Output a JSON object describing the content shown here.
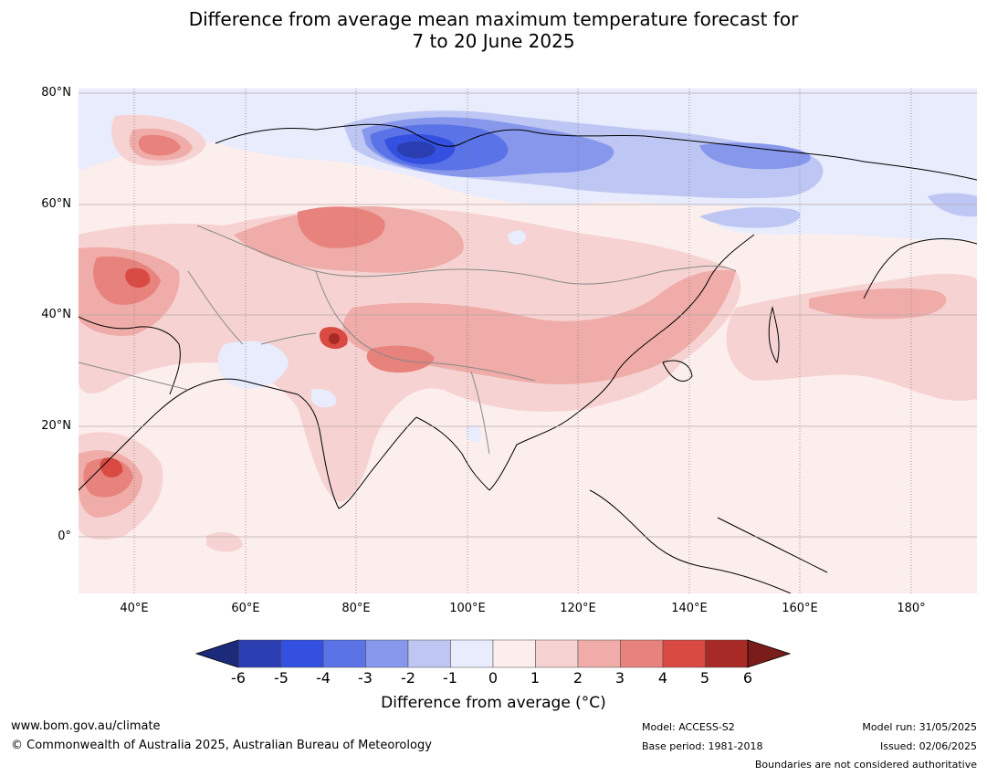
{
  "title_line1": "Difference from average mean maximum temperature forecast for",
  "title_line2": "7 to 20 June 2025",
  "lat_labels": [
    "80°N",
    "60°N",
    "40°N",
    "20°N",
    "0°"
  ],
  "lon_labels": [
    "40°E",
    "60°E",
    "80°E",
    "100°E",
    "120°E",
    "140°E",
    "160°E",
    "180°"
  ],
  "colorbar": {
    "ticks": [
      "-6",
      "-5",
      "-4",
      "-3",
      "-2",
      "-1",
      "0",
      "1",
      "2",
      "3",
      "4",
      "5",
      "6"
    ],
    "colors": [
      "#1b2a7a",
      "#2a3eb1",
      "#3350e0",
      "#5a73e6",
      "#8797ec",
      "#bec7f4",
      "#e8ecfc",
      "#fdeeee",
      "#f6d3d2",
      "#efaca8",
      "#e8827c",
      "#d84a42",
      "#a82a26",
      "#7a1d1a"
    ],
    "label": "Difference from average (°C)"
  },
  "footer": {
    "url": "www.bom.gov.au/climate",
    "copyright": "© Commonwealth of Australia 2025, Australian Bureau of Meteorology",
    "model": "Model: ACCESS-S2",
    "base_period": "Base period: 1981-2018",
    "model_run": "Model run: 31/05/2025",
    "issued": "Issued: 02/06/2025",
    "disclaimer": "Boundaries are not considered authoritative"
  }
}
